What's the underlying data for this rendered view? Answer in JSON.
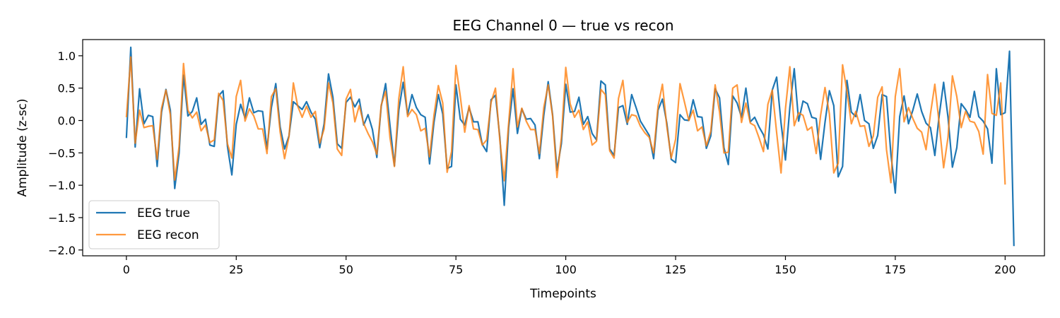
{
  "chart_data": {
    "type": "line",
    "title": "EEG Channel 0 — true vs recon",
    "xlabel": "Timepoints",
    "ylabel": "Amplitude (z-sc)",
    "xlim": [
      -9.95,
      208.95
    ],
    "ylim": [
      -2.09,
      1.25
    ],
    "xticks": [
      0,
      25,
      50,
      75,
      100,
      125,
      150,
      175,
      200
    ],
    "yticks": [
      1.0,
      0.5,
      0.0,
      -0.5,
      -1.0,
      -1.5,
      -2.0
    ],
    "ytick_labels": [
      "1.0",
      "0.5",
      "0.0",
      "−0.5",
      "−1.0",
      "−1.5",
      "−2.0"
    ],
    "grid": false,
    "legend_position": "lower-left",
    "series": [
      {
        "name": "EEG true",
        "color": "#1f77b4",
        "y": [
          -0.27,
          1.13,
          -0.41,
          0.49,
          -0.05,
          0.08,
          0.06,
          -0.71,
          0.13,
          0.48,
          0.16,
          -1.05,
          -0.5,
          0.7,
          0.07,
          0.14,
          0.35,
          -0.06,
          0.02,
          -0.38,
          -0.4,
          0.38,
          0.46,
          -0.4,
          -0.84,
          -0.06,
          0.25,
          0.04,
          0.35,
          0.12,
          0.15,
          0.14,
          -0.44,
          0.2,
          0.57,
          -0.1,
          -0.44,
          -0.24,
          0.29,
          0.23,
          0.17,
          0.29,
          0.13,
          0.02,
          -0.42,
          -0.05,
          0.72,
          0.36,
          -0.36,
          -0.43,
          0.28,
          0.36,
          0.21,
          0.33,
          -0.07,
          0.09,
          -0.14,
          -0.57,
          0.22,
          0.57,
          -0.08,
          -0.7,
          0.16,
          0.59,
          0.09,
          0.4,
          0.2,
          0.09,
          0.05,
          -0.67,
          -0.03,
          0.4,
          0.1,
          -0.74,
          -0.71,
          0.55,
          0.02,
          -0.07,
          0.2,
          -0.02,
          -0.02,
          -0.37,
          -0.48,
          0.32,
          0.39,
          -0.26,
          -1.31,
          -0.11,
          0.49,
          -0.2,
          0.18,
          0.02,
          0.03,
          -0.07,
          -0.59,
          0.08,
          0.6,
          0.09,
          -0.77,
          -0.36,
          0.56,
          0.13,
          0.14,
          0.36,
          -0.06,
          0.06,
          -0.2,
          -0.3,
          0.61,
          0.55,
          -0.44,
          -0.54,
          0.2,
          0.23,
          -0.06,
          0.4,
          0.2,
          -0.01,
          -0.12,
          -0.23,
          -0.59,
          0.16,
          0.33,
          -0.04,
          -0.6,
          -0.65,
          0.09,
          0.01,
          0.0,
          0.32,
          0.06,
          0.05,
          -0.43,
          -0.24,
          0.49,
          0.35,
          -0.42,
          -0.68,
          0.38,
          0.27,
          0.05,
          0.5,
          -0.02,
          0.05,
          -0.1,
          -0.22,
          -0.44,
          0.47,
          0.67,
          -0.04,
          -0.61,
          0.2,
          0.8,
          -0.01,
          0.3,
          0.26,
          0.05,
          0.03,
          -0.6,
          -0.03,
          0.46,
          0.23,
          -0.87,
          -0.71,
          0.62,
          0.13,
          0.06,
          0.4,
          0.0,
          -0.05,
          -0.43,
          -0.23,
          0.4,
          0.37,
          -0.52,
          -1.12,
          0.06,
          0.38,
          -0.05,
          0.16,
          0.41,
          0.14,
          -0.04,
          -0.11,
          -0.54,
          0.08,
          0.59,
          0.05,
          -0.72,
          -0.42,
          0.26,
          0.17,
          0.05,
          0.45,
          0.06,
          -0.01,
          -0.13,
          -0.66,
          0.8,
          0.09,
          0.12,
          1.07,
          -1.94
        ]
      },
      {
        "name": "EEG recon",
        "color": "#ff7f0e",
        "y": [
          0.05,
          0.98,
          -0.35,
          0.16,
          -0.11,
          -0.09,
          -0.08,
          -0.6,
          0.19,
          0.47,
          0.09,
          -0.92,
          -0.4,
          0.88,
          0.16,
          0.04,
          0.13,
          -0.16,
          -0.07,
          -0.34,
          -0.3,
          0.42,
          0.31,
          -0.36,
          -0.58,
          0.37,
          0.62,
          -0.01,
          0.18,
          0.07,
          -0.13,
          -0.13,
          -0.51,
          0.37,
          0.49,
          -0.18,
          -0.59,
          -0.25,
          0.58,
          0.22,
          0.05,
          0.22,
          0.05,
          0.14,
          -0.35,
          -0.13,
          0.58,
          0.27,
          -0.44,
          -0.54,
          0.33,
          0.48,
          -0.02,
          0.23,
          -0.05,
          -0.2,
          -0.33,
          -0.52,
          0.24,
          0.45,
          -0.27,
          -0.71,
          0.34,
          0.83,
          0.06,
          0.17,
          0.09,
          -0.16,
          -0.12,
          -0.56,
          0.08,
          0.54,
          0.27,
          -0.8,
          -0.48,
          0.85,
          0.37,
          -0.18,
          0.23,
          -0.13,
          -0.14,
          -0.38,
          -0.3,
          0.28,
          0.5,
          -0.31,
          -0.93,
          -0.04,
          0.8,
          -0.1,
          0.19,
          -0.01,
          -0.14,
          -0.14,
          -0.51,
          0.2,
          0.55,
          0.07,
          -0.88,
          -0.27,
          0.82,
          0.26,
          0.05,
          0.16,
          -0.14,
          -0.02,
          -0.38,
          -0.32,
          0.48,
          0.4,
          -0.47,
          -0.58,
          0.34,
          0.62,
          -0.03,
          0.09,
          0.07,
          -0.09,
          -0.19,
          -0.26,
          -0.5,
          0.22,
          0.56,
          -0.09,
          -0.58,
          -0.29,
          0.57,
          0.29,
          0.0,
          0.16,
          -0.16,
          -0.1,
          -0.39,
          -0.17,
          0.55,
          0.13,
          -0.5,
          -0.49,
          0.5,
          0.55,
          -0.03,
          0.27,
          -0.04,
          -0.08,
          -0.27,
          -0.48,
          0.25,
          0.47,
          -0.19,
          -0.81,
          0.18,
          0.83,
          -0.08,
          0.12,
          0.08,
          -0.15,
          -0.1,
          -0.51,
          0.08,
          0.51,
          0.1,
          -0.81,
          -0.66,
          0.86,
          0.45,
          -0.05,
          0.14,
          -0.09,
          -0.08,
          -0.4,
          -0.24,
          0.36,
          0.52,
          -0.45,
          -0.96,
          0.37,
          0.8,
          -0.02,
          0.2,
          0.03,
          -0.12,
          -0.18,
          -0.45,
          0.1,
          0.56,
          -0.05,
          -0.73,
          -0.26,
          0.69,
          0.37,
          -0.11,
          0.14,
          -0.01,
          -0.03,
          -0.17,
          -0.52,
          0.71,
          0.11,
          0.08,
          0.58,
          -0.99
        ]
      }
    ]
  }
}
